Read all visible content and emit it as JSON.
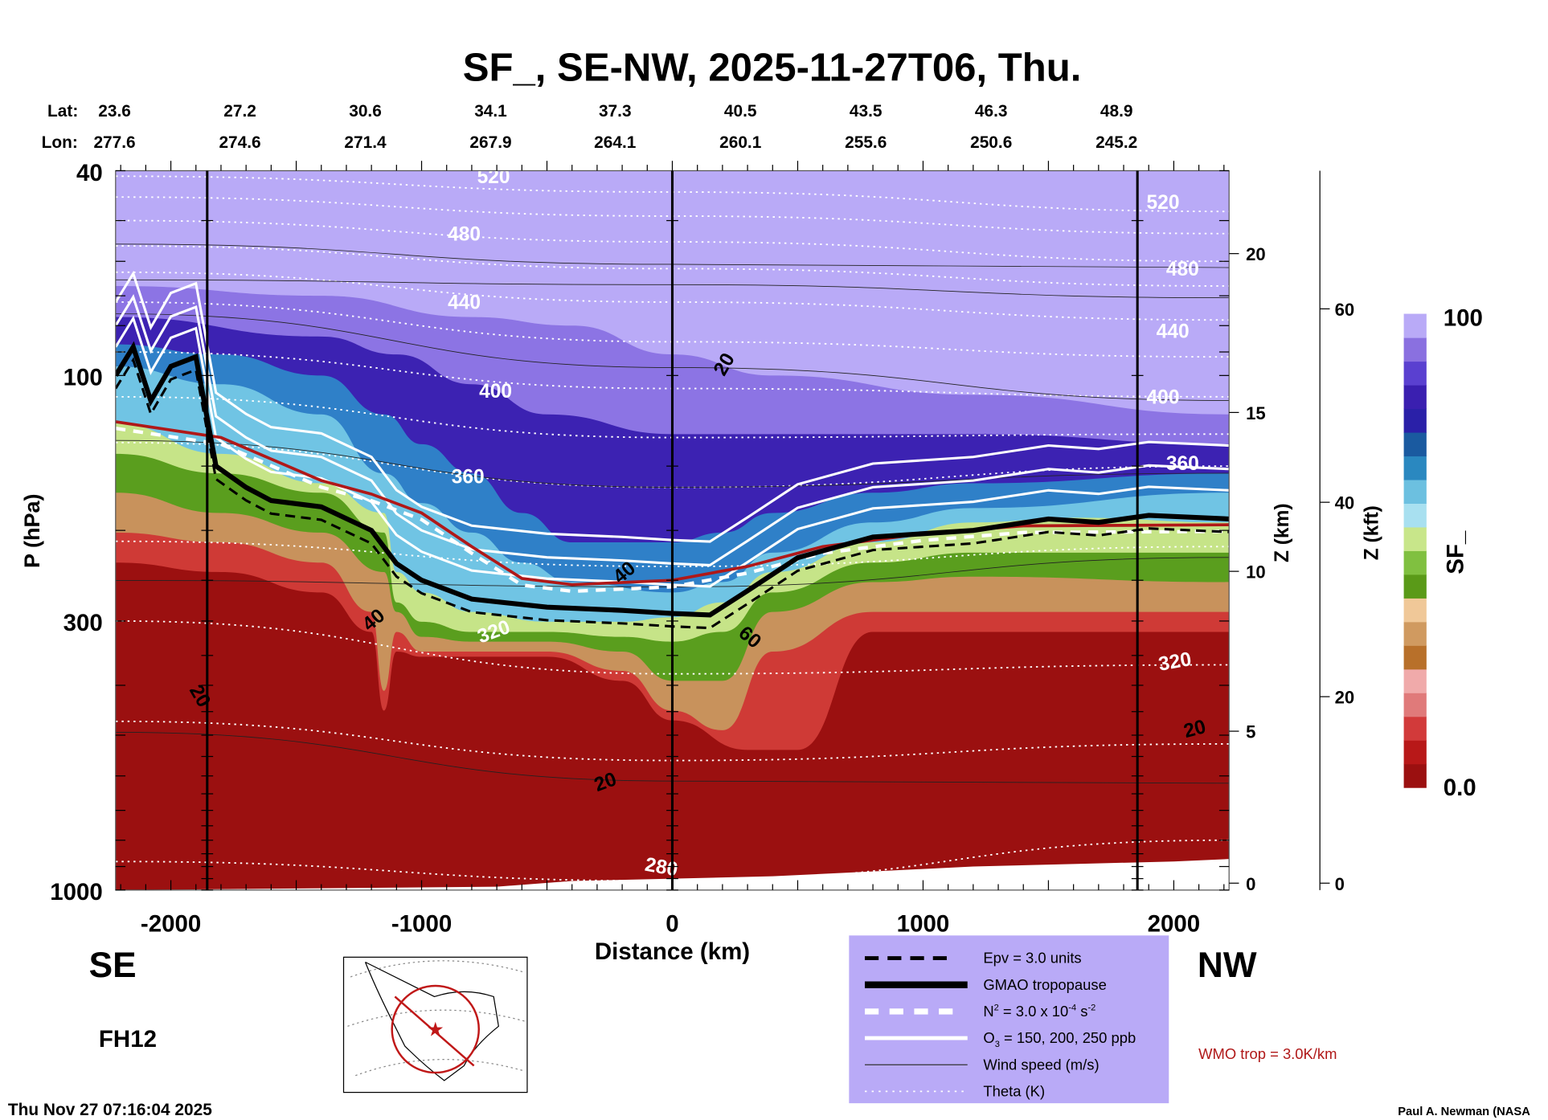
{
  "chart_data": {
    "type": "heatmap",
    "title": "SF_, SE-NW, 2025-11-27T06, Thu.",
    "xlabel": "Distance (km)",
    "ylabel": "P (hPa)",
    "xlim": [
      -2220,
      2220
    ],
    "ylim": [
      1000,
      40
    ],
    "xticks": [
      "-2000",
      "-1000",
      "0",
      "1000",
      "2000"
    ],
    "xtick_values": [
      -2000,
      -1000,
      0,
      1000,
      2000
    ],
    "yticks": [
      "40",
      "100",
      "300",
      "1000"
    ],
    "ytick_values": [
      40,
      100,
      300,
      1000
    ],
    "right_axis_km": {
      "label": "Z (km)",
      "ticks": [
        "0",
        "5",
        "10",
        "15",
        "20"
      ]
    },
    "right_axis_kft": {
      "label": "Z (kft)",
      "ticks": [
        "0",
        "20",
        "40",
        "60"
      ]
    },
    "lat_label": "Lat:",
    "lon_label": "Lon:",
    "lat": [
      "23.6",
      "27.2",
      "30.6",
      "34.1",
      "37.3",
      "40.5",
      "43.5",
      "46.3",
      "48.9"
    ],
    "lon": [
      "277.6",
      "274.6",
      "271.4",
      "267.9",
      "264.1",
      "260.1",
      "255.6",
      "250.6",
      "245.2"
    ],
    "colorbar": {
      "label": "SF_",
      "max": "100",
      "min": "0.0",
      "colors": [
        "#9b1010",
        "#b81818",
        "#d23a3a",
        "#e07a7a",
        "#f0aaaa",
        "#b8702a",
        "#d09a60",
        "#f0c898",
        "#5a9a18",
        "#80c040",
        "#c8e68a",
        "#a8e0f0",
        "#6cc0e0",
        "#2a88c0",
        "#1a5aa0",
        "#2a20a8",
        "#3a1fb0",
        "#5a40d0",
        "#8a70e0",
        "#b9aaf7"
      ]
    },
    "field_background_color": "#b9aaf7",
    "field_levels": [
      {
        "value": 90,
        "color": "#8c74e4",
        "boundary": [
          [
            -2220,
            67
          ],
          [
            -1400,
            70
          ],
          [
            -800,
            77
          ],
          [
            -400,
            80
          ],
          [
            0,
            91
          ],
          [
            400,
            100
          ],
          [
            1200,
            109
          ],
          [
            2220,
            119
          ]
        ]
      },
      {
        "value": 80,
        "color": "#3c22b2",
        "boundary": [
          [
            -2220,
            77
          ],
          [
            -1400,
            84
          ],
          [
            -1100,
            91
          ],
          [
            -800,
            104
          ],
          [
            -500,
            119
          ],
          [
            0,
            130
          ],
          [
            1200,
            130
          ],
          [
            2220,
            136
          ]
        ]
      },
      {
        "value": 65,
        "color": "#2f80c8",
        "boundary": [
          [
            -2220,
            87
          ],
          [
            -1800,
            91
          ],
          [
            -1400,
            100
          ],
          [
            -1150,
            119
          ],
          [
            -1000,
            136
          ],
          [
            -800,
            155
          ],
          [
            -600,
            185
          ],
          [
            -400,
            211
          ],
          [
            0,
            211
          ],
          [
            200,
            202
          ],
          [
            400,
            185
          ],
          [
            800,
            169
          ],
          [
            1200,
            162
          ],
          [
            2220,
            155
          ]
        ]
      },
      {
        "value": 55,
        "color": "#70c4e4",
        "boundary": [
          [
            -2220,
            96
          ],
          [
            -1800,
            104
          ],
          [
            -1400,
            119
          ],
          [
            -1150,
            155
          ],
          [
            -1000,
            177
          ],
          [
            -800,
            202
          ],
          [
            -600,
            231
          ],
          [
            -400,
            252
          ],
          [
            0,
            264
          ],
          [
            200,
            252
          ],
          [
            400,
            221
          ],
          [
            800,
            193
          ],
          [
            1200,
            181
          ],
          [
            2220,
            169
          ]
        ]
      },
      {
        "value": 45,
        "color": "#c6e488",
        "boundary": [
          [
            -2220,
            124
          ],
          [
            -1800,
            142
          ],
          [
            -1400,
            162
          ],
          [
            -1150,
            185
          ],
          [
            -1100,
            241
          ],
          [
            -1000,
            264
          ],
          [
            -800,
            288
          ],
          [
            -500,
            301
          ],
          [
            -200,
            301
          ],
          [
            0,
            295
          ],
          [
            200,
            276
          ],
          [
            400,
            241
          ],
          [
            800,
            211
          ],
          [
            1200,
            193
          ],
          [
            1600,
            189
          ],
          [
            2220,
            193
          ]
        ]
      },
      {
        "value": 35,
        "color": "#5a9e1e",
        "boundary": [
          [
            -2220,
            142
          ],
          [
            -1800,
            155
          ],
          [
            -1400,
            169
          ],
          [
            -1150,
            202
          ],
          [
            -1100,
            276
          ],
          [
            -1000,
            301
          ],
          [
            -800,
            315
          ],
          [
            -500,
            315
          ],
          [
            -200,
            322
          ],
          [
            0,
            329
          ],
          [
            200,
            315
          ],
          [
            400,
            264
          ],
          [
            800,
            231
          ],
          [
            1200,
            221
          ],
          [
            2220,
            221
          ]
        ]
      },
      {
        "value": 25,
        "color": "#c8925c",
        "boundary": [
          [
            -2220,
            169
          ],
          [
            -1800,
            185
          ],
          [
            -1400,
            202
          ],
          [
            -1150,
            241
          ],
          [
            -1100,
            288
          ],
          [
            -1000,
            322
          ],
          [
            -800,
            329
          ],
          [
            -500,
            329
          ],
          [
            -200,
            344
          ],
          [
            0,
            392
          ],
          [
            200,
            392
          ],
          [
            400,
            288
          ],
          [
            800,
            252
          ],
          [
            1200,
            246
          ],
          [
            2220,
            252
          ]
        ]
      },
      {
        "value": 15,
        "color": "#cf3a36",
        "boundary": [
          [
            -2220,
            202
          ],
          [
            -1800,
            211
          ],
          [
            -1400,
            231
          ],
          [
            -1200,
            288
          ],
          [
            -1150,
            410
          ],
          [
            -1100,
            315
          ],
          [
            -1000,
            344
          ],
          [
            -500,
            344
          ],
          [
            -200,
            375
          ],
          [
            0,
            448
          ],
          [
            200,
            489
          ],
          [
            400,
            344
          ],
          [
            800,
            288
          ],
          [
            1200,
            288
          ],
          [
            2220,
            288
          ]
        ]
      },
      {
        "value": 5,
        "color": "#9b1010",
        "boundary": [
          [
            -2220,
            231
          ],
          [
            -1800,
            241
          ],
          [
            -1400,
            264
          ],
          [
            -1200,
            315
          ],
          [
            -1150,
            448
          ],
          [
            -1100,
            344
          ],
          [
            -1000,
            352
          ],
          [
            -500,
            352
          ],
          [
            -200,
            392
          ],
          [
            0,
            468
          ],
          [
            300,
            534
          ],
          [
            500,
            534
          ],
          [
            800,
            315
          ],
          [
            1200,
            315
          ],
          [
            2220,
            315
          ]
        ]
      }
    ],
    "surface_pressure": [
      [
        -2220,
        1000
      ],
      [
        -700,
        985
      ],
      [
        -400,
        960
      ],
      [
        0,
        950
      ],
      [
        400,
        940
      ],
      [
        800,
        920
      ],
      [
        1200,
        900
      ],
      [
        1600,
        890
      ],
      [
        2000,
        880
      ],
      [
        2220,
        870
      ]
    ],
    "gmao_tropopause": [
      [
        -2220,
        100
      ],
      [
        -2150,
        88
      ],
      [
        -2080,
        112
      ],
      [
        -2000,
        96
      ],
      [
        -1900,
        92
      ],
      [
        -1820,
        150
      ],
      [
        -1700,
        165
      ],
      [
        -1600,
        175
      ],
      [
        -1400,
        180
      ],
      [
        -1200,
        200
      ],
      [
        -1100,
        232
      ],
      [
        -1000,
        250
      ],
      [
        -800,
        272
      ],
      [
        -500,
        282
      ],
      [
        -200,
        286
      ],
      [
        0,
        290
      ],
      [
        150,
        292
      ],
      [
        300,
        262
      ],
      [
        500,
        226
      ],
      [
        800,
        206
      ],
      [
        1200,
        200
      ],
      [
        1500,
        190
      ],
      [
        1700,
        193
      ],
      [
        1900,
        187
      ],
      [
        2220,
        190
      ]
    ],
    "wmo_tropopause": [
      [
        -2220,
        123
      ],
      [
        -1800,
        132
      ],
      [
        -1400,
        160
      ],
      [
        -1200,
        170
      ],
      [
        -1000,
        185
      ],
      [
        -800,
        215
      ],
      [
        -600,
        248
      ],
      [
        -400,
        255
      ],
      [
        0,
        250
      ],
      [
        300,
        235
      ],
      [
        600,
        215
      ],
      [
        1000,
        203
      ],
      [
        1400,
        196
      ],
      [
        2220,
        195
      ]
    ],
    "wind_speed_levels": [
      20,
      40,
      60
    ],
    "theta_lines": [
      {
        "theta": 520,
        "p": [
          [
            -2220,
            41
          ],
          [
            0,
            44
          ],
          [
            2220,
            48
          ]
        ]
      },
      {
        "theta": 500,
        "p": [
          [
            -2220,
            45
          ],
          [
            0,
            49
          ],
          [
            2220,
            53
          ]
        ]
      },
      {
        "theta": 480,
        "p": [
          [
            -2220,
            50
          ],
          [
            0,
            55
          ],
          [
            2220,
            60
          ]
        ]
      },
      {
        "theta": 460,
        "p": [
          [
            -2220,
            56
          ],
          [
            0,
            62
          ],
          [
            2220,
            67
          ]
        ]
      },
      {
        "theta": 440,
        "p": [
          [
            -2220,
            63
          ],
          [
            0,
            72
          ],
          [
            2220,
            78
          ]
        ]
      },
      {
        "theta": 420,
        "p": [
          [
            -2220,
            72
          ],
          [
            0,
            86
          ],
          [
            2220,
            92
          ]
        ]
      },
      {
        "theta": 400,
        "p": [
          [
            -2220,
            90
          ],
          [
            0,
            106
          ],
          [
            2220,
            110
          ]
        ]
      },
      {
        "theta": 380,
        "p": [
          [
            -2220,
            110
          ],
          [
            0,
            132
          ],
          [
            2220,
            130
          ]
        ]
      },
      {
        "theta": 360,
        "p": [
          [
            -2220,
            135
          ],
          [
            0,
            165
          ],
          [
            2220,
            150
          ]
        ]
      },
      {
        "theta": 340,
        "p": [
          [
            -2220,
            210
          ],
          [
            0,
            235
          ],
          [
            2220,
            215
          ]
        ]
      },
      {
        "theta": 320,
        "p": [
          [
            -2220,
            300
          ],
          [
            0,
            380
          ],
          [
            2220,
            365
          ]
        ]
      },
      {
        "theta": 300,
        "p": [
          [
            -2220,
            470
          ],
          [
            0,
            560
          ],
          [
            2220,
            520
          ]
        ]
      },
      {
        "theta": 280,
        "p": [
          [
            -2220,
            880
          ],
          [
            0,
            960
          ],
          [
            2220,
            800
          ]
        ]
      }
    ],
    "annotations": [
      {
        "text": "520",
        "d": -713,
        "p": 41,
        "kind": "theta",
        "rot": 0
      },
      {
        "text": "480",
        "d": -830,
        "p": 53,
        "kind": "theta",
        "rot": 0
      },
      {
        "text": "440",
        "d": -830,
        "p": 72,
        "kind": "theta",
        "rot": 0
      },
      {
        "text": "400",
        "d": -705,
        "p": 107,
        "kind": "theta",
        "rot": 0
      },
      {
        "text": "360",
        "d": -815,
        "p": 157,
        "kind": "theta",
        "rot": 0
      },
      {
        "text": "320",
        "d": -713,
        "p": 314,
        "kind": "theta",
        "rot": -20
      },
      {
        "text": "280",
        "d": -43,
        "p": 900,
        "kind": "theta",
        "rot": 10
      },
      {
        "text": "520",
        "d": 1957,
        "p": 46,
        "kind": "theta",
        "rot": 0
      },
      {
        "text": "480",
        "d": 2035,
        "p": 62,
        "kind": "theta",
        "rot": 0
      },
      {
        "text": "440",
        "d": 1996,
        "p": 82,
        "kind": "theta",
        "rot": 0
      },
      {
        "text": "400",
        "d": 1957,
        "p": 110,
        "kind": "theta",
        "rot": 0
      },
      {
        "text": "360",
        "d": 2035,
        "p": 148,
        "kind": "theta",
        "rot": 0
      },
      {
        "text": "320",
        "d": 2004,
        "p": 359,
        "kind": "theta",
        "rot": -10
      },
      {
        "text": "20",
        "d": 205,
        "p": 95,
        "kind": "wind",
        "rot": -60
      },
      {
        "text": "40",
        "d": -193,
        "p": 241,
        "kind": "wind",
        "rot": -40
      },
      {
        "text": "60",
        "d": 311,
        "p": 322,
        "kind": "wind",
        "rot": 40
      },
      {
        "text": "40",
        "d": -1193,
        "p": 298,
        "kind": "wind",
        "rot": -40
      },
      {
        "text": "20",
        "d": -1882,
        "p": 419,
        "kind": "wind",
        "rot": 60
      },
      {
        "text": "20",
        "d": -268,
        "p": 615,
        "kind": "wind",
        "rot": -20
      },
      {
        "text": "20",
        "d": 2083,
        "p": 485,
        "kind": "wind",
        "rot": -15
      }
    ]
  },
  "labels": {
    "se": "SE",
    "nw": "NW",
    "forecast_hour": "FH12",
    "timestamp": "Thu Nov 27 07:16:04 2025",
    "wmo": "WMO trop = 3.0K/km",
    "credit": "Paul A. Newman (NASA"
  },
  "legend": {
    "epv": "Epv = 3.0 units",
    "gmao": "GMAO tropopause",
    "n2_a": "N",
    "n2_sup": "2",
    "n2_b": " = 3.0 x 10",
    "n2_exp": "-4",
    "n2_c": " s",
    "n2_exp2": "-2",
    "o3_a": "O",
    "o3_sub": "3",
    "o3_b": " = 150, 200, 250 ppb",
    "wind": "Wind speed (m/s)",
    "theta": "Theta (K)",
    "colors": {
      "bg": "#b9aaf7",
      "wmo": "#b01818"
    }
  }
}
